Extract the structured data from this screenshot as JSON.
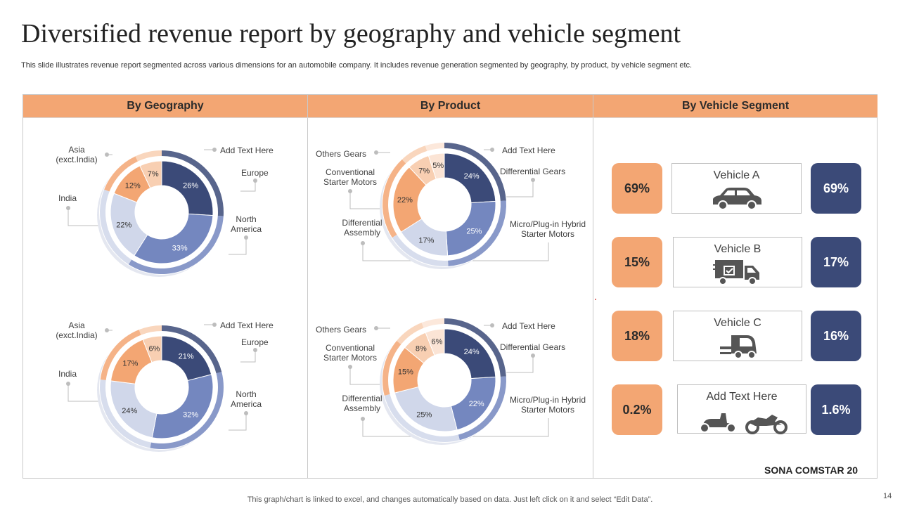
{
  "title": "Diversified revenue report by geography and vehicle segment",
  "subtitle": "This slide illustrates revenue report segmented across various dimensions for an automobile company. It includes revenue generation segmented by geography, by product, by vehicle segment etc.",
  "headers": {
    "geography": "By Geography",
    "product": "By Product",
    "vehicle": "By Vehicle Segment"
  },
  "geo_labels": {
    "asia": "Asia\n(exct.India)",
    "add_text": "Add Text Here",
    "europe": "Europe",
    "india": "India",
    "north_america": "North\nAmerica"
  },
  "product_labels": {
    "others": "Others Gears",
    "add_text": "Add Text Here",
    "conventional": "Conventional\nStarter Motors",
    "differential_gears": "Differential Gears",
    "differential_assembly": "Differential\nAssembly",
    "hybrid": "Micro/Plug-in Hybrid\nStarter Motors"
  },
  "colors": {
    "navy": "#3b4a78",
    "steel": "#7487bf",
    "pale_blue": "#d0d7ea",
    "orange": "#f3a673",
    "peach": "#f8cfb2",
    "cream": "#fbe4d5"
  },
  "chart_data": [
    {
      "type": "pie",
      "name": "By Geography (top)",
      "categories": [
        "Europe",
        "North America",
        "India",
        "Asia (exct.India)",
        "Add Text Here"
      ],
      "values": [
        26,
        33,
        22,
        12,
        7
      ]
    },
    {
      "type": "pie",
      "name": "By Geography (bottom)",
      "categories": [
        "Europe",
        "North America",
        "India",
        "Asia (exct.India)",
        "Add Text Here"
      ],
      "values": [
        21,
        32,
        24,
        17,
        6
      ]
    },
    {
      "type": "pie",
      "name": "By Product (top)",
      "categories": [
        "Differential Gears",
        "Micro/Plug-in Hybrid Starter Motors",
        "Differential Assembly",
        "Conventional Starter Motors",
        "Others Gears",
        "Add Text Here"
      ],
      "values": [
        24,
        25,
        17,
        22,
        7,
        5
      ]
    },
    {
      "type": "pie",
      "name": "By Product (bottom)",
      "categories": [
        "Differential Gears",
        "Micro/Plug-in Hybrid Starter Motors",
        "Differential Assembly",
        "Conventional Starter Motors",
        "Others Gears",
        "Add Text Here"
      ],
      "values": [
        24,
        22,
        25,
        15,
        8,
        6
      ]
    }
  ],
  "vehicle_segments": [
    {
      "name": "Vehicle A",
      "left": "69%",
      "right": "69%",
      "icon": "car-icon"
    },
    {
      "name": "Vehicle B",
      "left": "15%",
      "right": "17%",
      "icon": "delivery-truck-icon"
    },
    {
      "name": "Vehicle C",
      "left": "18%",
      "right": "16%",
      "icon": "forklift-icon"
    },
    {
      "name": "Add Text Here",
      "left": "0.2%",
      "right": "1.6%",
      "icon": "two-wheeler-icon"
    }
  ],
  "brand": "SONA COMSTAR 20",
  "footer": "This graph/chart is linked to excel,  and changes automatically based on data. Just left click on it and select “Edit Data”.",
  "page_number": "14"
}
